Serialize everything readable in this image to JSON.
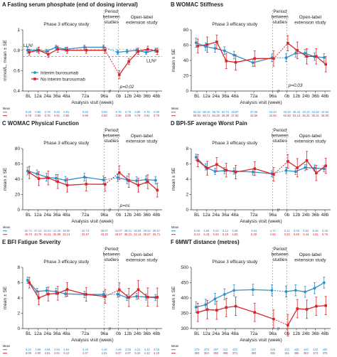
{
  "colors": {
    "interim": "#2f8fc6",
    "no_interim": "#d6262b"
  },
  "legend": {
    "interim": "Interim burosumab",
    "no_interim": "No interim burosumab"
  },
  "headers": {
    "phase3": "Phase 3 efficacy study",
    "period": [
      "Period",
      "between",
      "studies"
    ],
    "ole": [
      "Open-label",
      "extension study"
    ]
  },
  "x_categories": [
    "BL",
    "12a",
    "24a",
    "36a",
    "48a",
    "72a",
    "96a",
    "0b",
    "12b",
    "24b",
    "36b",
    "48b"
  ],
  "xlabel": "Analysis visit (week)",
  "mean_label": "Mean",
  "break_mark": "//",
  "chart_data": [
    {
      "id": "A",
      "type": "line",
      "title": "A  Fasting serum phosphate (end of dosing interval)",
      "ylabel": "mmol/L, mean ± SE",
      "ylim": [
        0.4,
        1.0
      ],
      "yticks": [
        0.4,
        0.6,
        0.8,
        1.0
      ],
      "x": [
        "BL",
        "12a",
        "24a",
        "36a",
        "48a",
        "72a",
        "96a",
        "0b",
        "12b",
        "24b",
        "36b",
        "48b"
      ],
      "series": [
        {
          "name": "Interim burosumab",
          "key": "interim",
          "values": [
            0.8,
            0.8,
            0.79,
            0.83,
            0.81,
            0.83,
            0.83,
            0.78,
            0.79,
            0.8,
            0.78,
            0.8
          ],
          "se": [
            0.03,
            0.02,
            0.02,
            0.02,
            0.02,
            0.02,
            0.02,
            0.02,
            0.02,
            0.02,
            0.02,
            0.02
          ]
        },
        {
          "name": "No interim burosumab",
          "key": "no_interim",
          "values": [
            0.78,
            0.8,
            0.76,
            0.81,
            0.8,
            0.8,
            0.8,
            0.56,
            0.69,
            0.79,
            0.81,
            0.79
          ],
          "se": [
            0.03,
            0.03,
            0.03,
            0.03,
            0.03,
            0.03,
            0.03,
            0.04,
            0.03,
            0.03,
            0.03,
            0.03
          ]
        }
      ],
      "mean_rows": [
        [
          "0.80",
          "0.80",
          "0.79",
          "0.83",
          "0.81",
          "0.83",
          "0.83",
          "0.78",
          "0.79",
          "0.80",
          "0.78",
          "0.80"
        ],
        [
          "0.78",
          "0.80",
          "0.76",
          "0.81",
          "0.80",
          "0.80",
          "0.80",
          "0.56",
          "0.69",
          "0.79",
          "0.81",
          "0.79"
        ]
      ],
      "annotations": {
        "lln1": "LLN¹",
        "lln2": "LLN²",
        "p": "p=0.02"
      },
      "lln1_value": 0.81,
      "lln2_value": 0.74,
      "show_legend": true
    },
    {
      "id": "B",
      "type": "line",
      "title": "B  WOMAC Stiffness",
      "ylabel": "mean ± SE",
      "ylim": [
        0,
        80
      ],
      "yticks": [
        0,
        20,
        40,
        60,
        80
      ],
      "x": [
        "BL",
        "12a",
        "24a",
        "36a",
        "48a",
        "72a",
        "96a",
        "0b",
        "12b",
        "24b",
        "36b",
        "48b"
      ],
      "series": [
        {
          "name": "Interim burosumab",
          "key": "interim",
          "values": [
            63.22,
            58.1,
            55.78,
            52.72,
            46.97,
            37.06,
            43.49,
            43.49,
            49.43,
            49.43,
            44.92,
            43.84
          ],
          "se": [
            6,
            5,
            5,
            5,
            5,
            5,
            5,
            5,
            5,
            5,
            5,
            5
          ]
        },
        {
          "name": "No interim burosumab",
          "key": "no_interim",
          "values": [
            58.93,
            60.71,
            64.29,
            39.29,
            37.5,
            42.5,
            42.5,
            62.5,
            53.13,
            45.31,
            45.31,
            35.0
          ],
          "se": [
            9,
            10,
            9,
            10,
            10,
            10,
            10,
            10,
            11,
            10,
            10,
            10
          ]
        }
      ],
      "mean_rows": [
        [
          "63.22",
          "58.10",
          "55.78",
          "52.72",
          "46.97",
          "37.06",
          "43.49",
          "43.49",
          "49.43",
          "49.43",
          "44.92",
          "43.84"
        ],
        [
          "58.93",
          "60.71",
          "64.29",
          "39.29",
          "37.50",
          "42.50",
          "42.50",
          "62.50",
          "53.13",
          "45.31",
          "45.31",
          "35.00"
        ]
      ],
      "annotations": {
        "p": "p=0.03"
      }
    },
    {
      "id": "C",
      "type": "line",
      "title": "C  WOMAC Physical Function",
      "ylabel": "mean ± SE",
      "ylim": [
        0,
        80
      ],
      "yticks": [
        0,
        20,
        40,
        60,
        80
      ],
      "x": [
        "BL",
        "12a",
        "24a",
        "36a",
        "48a",
        "72a",
        "96a",
        "0b",
        "12b",
        "24b",
        "36b",
        "48b"
      ],
      "series": [
        {
          "name": "Interim burosumab",
          "key": "interim",
          "values": [
            50.71,
            47.13,
            42.64,
            41.25,
            38.55,
            42.73,
            39.07,
            42.07,
            39.21,
            38.05,
            39.52,
            38.57
          ],
          "se": [
            5,
            5,
            5,
            5,
            5,
            5,
            5,
            5,
            5,
            5,
            5,
            5
          ]
        },
        {
          "name": "No interim burosumab",
          "key": "no_interim",
          "values": [
            48.74,
            40.79,
            41.61,
            36.88,
            32.14,
            33.57,
            33.33,
            48.57,
            38.21,
            32.14,
            36.67,
            25.71
          ],
          "se": [
            8,
            9,
            9,
            9,
            9,
            9,
            9,
            9,
            9,
            9,
            9,
            9
          ]
        }
      ],
      "mean_rows": [
        [
          "50.71",
          "47.13",
          "42.64",
          "41.25",
          "38.55",
          "42.73",
          "39.07",
          "42.07",
          "39.21",
          "38.05",
          "39.52",
          "38.57"
        ],
        [
          "48.74",
          "40.79",
          "41.61",
          "36.88",
          "32.14",
          "33.57",
          "33.33",
          "48.57",
          "38.21",
          "32.14",
          "36.67",
          "25.71"
        ]
      ],
      "annotations": {
        "p": "p=ns"
      }
    },
    {
      "id": "D",
      "type": "line",
      "title": "D  BPI-SF average Worst Pain",
      "ylabel": "mean ± SE",
      "ylim": [
        0,
        8
      ],
      "yticks": [
        0,
        2,
        4,
        6,
        8
      ],
      "x": [
        "BL",
        "12a",
        "24a",
        "36a",
        "48a",
        "72a",
        "96a",
        "0b",
        "12b",
        "24b",
        "36b",
        "48b"
      ],
      "series": [
        {
          "name": "Interim burosumab",
          "key": "interim",
          "values": [
            6.88,
            5.6,
            5.02,
            5.12,
            5.06,
            4.94,
            4.72,
            5.14,
            5.0,
            5.52,
            5.46,
            5.36
          ],
          "se": [
            0.4,
            0.4,
            0.4,
            0.4,
            0.4,
            0.4,
            0.4,
            0.4,
            0.4,
            0.4,
            0.4,
            0.4
          ]
        },
        {
          "name": "No interim burosumab",
          "key": "no_interim",
          "values": [
            6.43,
            5.43,
            5.93,
            5.18,
            4.93,
            5.38,
            4.64,
            6.33,
            5.5,
            6.44,
            4.81,
            5.75
          ],
          "se": [
            0.8,
            0.9,
            0.9,
            0.9,
            0.9,
            0.9,
            0.9,
            0.9,
            1.2,
            1.2,
            1.0,
            1.0
          ]
        }
      ],
      "mean_rows": [
        [
          "6.88",
          "5.60",
          "5.02",
          "5.12",
          "5.06",
          "4.94",
          "4.72",
          "5.14",
          "5.00",
          "5.52",
          "5.46",
          "5.36"
        ],
        [
          "6.43",
          "5.43",
          "5.93",
          "5.18",
          "4.93",
          "5.38",
          "4.64",
          "6.33",
          "5.50",
          "6.44",
          "4.81",
          "5.75"
        ]
      ]
    },
    {
      "id": "E",
      "type": "line",
      "title": "E  BFI Fatigue Severity",
      "ylabel": "mean ± SE",
      "ylim": [
        0,
        8
      ],
      "yticks": [
        0,
        2,
        4,
        6,
        8
      ],
      "x": [
        "BL",
        "12a",
        "24a",
        "36a",
        "48a",
        "72a",
        "96a",
        "0b",
        "12b",
        "24b",
        "36b",
        "48b"
      ],
      "series": [
        {
          "name": "Interim burosumab",
          "key": "interim",
          "values": [
            6.32,
            4.86,
            4.96,
            4.84,
            4.54,
            4.46,
            4.46,
            4.49,
            4.05,
            4.21,
            4.12,
            4.05
          ],
          "se": [
            0.4,
            0.4,
            0.4,
            0.4,
            0.4,
            0.4,
            0.4,
            0.4,
            0.4,
            0.4,
            0.4,
            0.4
          ]
        },
        {
          "name": "No interim burosumab",
          "key": "no_interim",
          "values": [
            6.0,
            4.0,
            4.51,
            4.61,
            5.12,
            4.47,
            4.21,
            5.07,
            4.07,
            5.1,
            4.12,
            4.1
          ],
          "se": [
            0.7,
            0.9,
            0.9,
            0.9,
            0.9,
            0.9,
            0.9,
            0.9,
            1.2,
            1.2,
            1.2,
            1.2
          ]
        }
      ],
      "mean_rows": [
        [
          "6.32",
          "4.86",
          "4.96",
          "4.84",
          "4.54",
          "4.46",
          "4.46",
          "4.49",
          "4.05",
          "4.21",
          "4.12",
          "4.05"
        ],
        [
          "6.00",
          "4.00",
          "4.51",
          "4.61",
          "5.12",
          "4.47",
          "4.21",
          "5.07",
          "4.07",
          "5.10",
          "4.12",
          "4.10"
        ]
      ]
    },
    {
      "id": "F",
      "type": "line",
      "title": "F  6MWT distance (metres)",
      "ylabel": "mean ± SE",
      "ylim": [
        300,
        500
      ],
      "yticks": [
        300,
        350,
        400,
        450,
        500
      ],
      "x": [
        "BL",
        "12a",
        "24a",
        "36a",
        "48a",
        "72a",
        "96a",
        "0b",
        "12b",
        "24b",
        "36b",
        "48b"
      ],
      "series": [
        {
          "name": "Interim burosumab",
          "key": "interim",
          "values": [
            370,
            378,
            397,
            412,
            425,
            427,
            425,
            421,
            425,
            420,
            432,
            450
          ],
          "se": [
            18,
            18,
            18,
            18,
            18,
            18,
            18,
            18,
            18,
            18,
            18,
            18
          ]
        },
        {
          "name": "No interim burosumab",
          "key": "no_interim",
          "values": [
            353,
            362,
            360,
            369,
            373,
            353,
            331,
            311,
            365,
            363,
            373,
            375
          ],
          "se": [
            30,
            30,
            30,
            30,
            30,
            30,
            30,
            35,
            30,
            30,
            30,
            30
          ]
        }
      ],
      "mean_rows": [
        [
          "370",
          "378",
          "397",
          "412",
          "425",
          "427",
          "425",
          "421",
          "425",
          "420",
          "432",
          "450"
        ],
        [
          "353",
          "362",
          "360",
          "369",
          "373",
          "353",
          "331",
          "311",
          "365",
          "363",
          "373",
          "375"
        ]
      ]
    }
  ]
}
